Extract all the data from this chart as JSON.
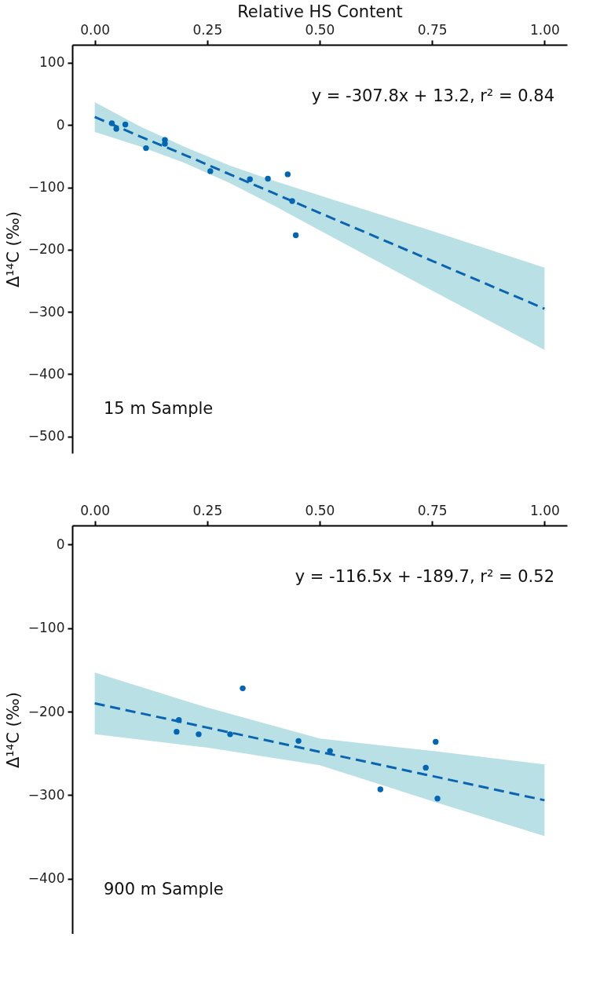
{
  "chart_data": [
    {
      "type": "scatter",
      "xlabel": "Relative HS Content",
      "ylabel": "Δ¹⁴C (‰)",
      "xlim": [
        -0.05,
        1.05
      ],
      "ylim": [
        -527,
        129
      ],
      "xticks": [
        {
          "value": 0,
          "label": "0.00"
        },
        {
          "value": 0.25,
          "label": "0.25"
        },
        {
          "value": 0.5,
          "label": "0.50"
        },
        {
          "value": 0.75,
          "label": "0.75"
        },
        {
          "value": 1,
          "label": "1.00"
        }
      ],
      "yticks": [
        100,
        0,
        -100,
        -200,
        -300,
        -400,
        -500
      ],
      "grid": false,
      "annotations": [
        "y = -307.8x + 13.2,  r² = 0.84",
        "15 m Sample"
      ],
      "series": [
        {
          "type": "line",
          "color": "#0a64b0",
          "line_style": "dashed",
          "x": [
            0,
            0.1,
            0.2,
            0.3,
            0.4,
            0.5,
            0.75,
            1
          ],
          "values": [
            13,
            -18,
            -48,
            -79,
            -110,
            -141,
            -218,
            -295
          ],
          "lower": [
            -11,
            -34,
            -61,
            -93,
            -130,
            -169,
            -266,
            -361
          ],
          "upper": [
            37,
            -2,
            -35,
            -65,
            -90,
            -113,
            -170,
            -229
          ]
        },
        {
          "color": "#0066b3",
          "marker": "circle",
          "x": [
            0.038,
            0.048,
            0.068,
            0.114,
            0.156,
            0.156,
            0.257,
            0.345,
            0.385,
            0.429,
            0.439,
            0.447
          ],
          "values": [
            3,
            -6,
            1,
            -37,
            -24,
            -30,
            -74,
            -87,
            -86,
            -79,
            -122,
            -177
          ]
        }
      ]
    },
    {
      "type": "scatter",
      "ylabel": "Δ¹⁴C (‰)",
      "xlim": [
        -0.05,
        1.05
      ],
      "ylim": [
        -466,
        23
      ],
      "xticks": [
        {
          "value": 0,
          "label": "0.00"
        },
        {
          "value": 0.25,
          "label": "0.25"
        },
        {
          "value": 0.5,
          "label": "0.50"
        },
        {
          "value": 0.75,
          "label": "0.75"
        },
        {
          "value": 1,
          "label": "1.00"
        }
      ],
      "yticks": [
        0,
        -100,
        -200,
        -300,
        -400
      ],
      "grid": false,
      "annotations": [
        "y = -116.5x + -189.7,  r² = 0.52",
        "900 m Sample"
      ],
      "series": [
        {
          "type": "line",
          "color": "#0a64b0",
          "line_style": "dashed",
          "x": [
            0,
            0.25,
            0.5,
            0.75,
            1
          ],
          "values": [
            -190,
            -219,
            -248,
            -277,
            -306
          ],
          "lower": [
            -227,
            -243,
            -264,
            -307,
            -349
          ],
          "upper": [
            -153,
            -195,
            -232,
            -247,
            -263
          ]
        },
        {
          "color": "#0066b3",
          "marker": "circle",
          "x": [
            0.187,
            0.182,
            0.231,
            0.301,
            0.329,
            0.453,
            0.523,
            0.635,
            0.736,
            0.758,
            0.762
          ],
          "values": [
            -210,
            -224,
            -227,
            -227,
            -172,
            -235,
            -247,
            -293,
            -267,
            -236,
            -304
          ]
        }
      ]
    }
  ]
}
